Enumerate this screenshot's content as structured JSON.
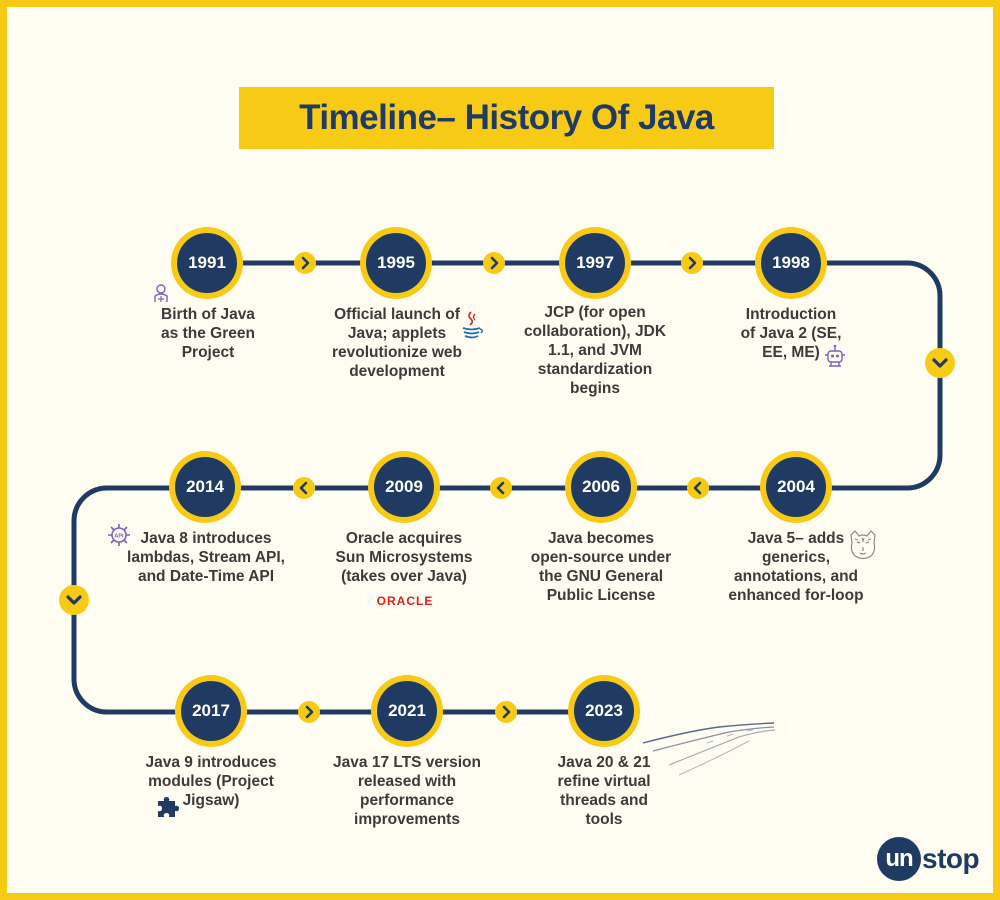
{
  "title": "Timeline– History Of Java",
  "milestones": [
    {
      "year": "1991",
      "lines": [
        "Birth of Java",
        "as the Green",
        "Project"
      ]
    },
    {
      "year": "1995",
      "lines": [
        "Official launch of",
        "Java; applets",
        "revolutionize web",
        "development"
      ]
    },
    {
      "year": "1997",
      "lines": [
        "JCP  (for open",
        "collaboration), JDK",
        "1.1, and JVM",
        "standardization",
        "begins"
      ]
    },
    {
      "year": "1998",
      "lines": [
        "Introduction",
        "of Java 2 (SE,",
        "EE, ME)"
      ]
    },
    {
      "year": "2004",
      "lines": [
        "Java 5– adds",
        "generics,",
        "annotations, and",
        "enhanced for-loop"
      ]
    },
    {
      "year": "2006",
      "lines": [
        "Java becomes",
        "open-source under",
        "the GNU General",
        "Public License"
      ]
    },
    {
      "year": "2009",
      "lines": [
        "Oracle acquires",
        "Sun Microsystems",
        "(takes over Java)"
      ]
    },
    {
      "year": "2014",
      "lines": [
        "Java 8 introduces",
        "lambdas, Stream API,",
        "and Date-Time API"
      ]
    },
    {
      "year": "2017",
      "lines": [
        "Java 9 introduces",
        "modules (Project",
        "Jigsaw)"
      ]
    },
    {
      "year": "2021",
      "lines": [
        "Java 17 LTS version",
        "released with",
        "performance",
        "improvements"
      ]
    },
    {
      "year": "2023",
      "lines": [
        "Java 20 & 21",
        "refine virtual",
        "threads and",
        "tools"
      ]
    }
  ],
  "oracle_logo": "ORACLE",
  "icons": [
    "green-project-icon",
    "java-cup-icon",
    "robot-icon",
    "tiger-icon",
    "oracle-logo",
    "api-gear-icon",
    "puzzle-piece-icon",
    "speed-lines-icon",
    "unstop-logo"
  ],
  "brand": {
    "un": "un",
    "rest": "stop"
  },
  "colors": {
    "accent": "#F7CB15",
    "navy": "#1F3A63",
    "background": "#FFFDF1",
    "text": "#3b3b3b",
    "oracle_red": "#D9231D",
    "icon_purple": "#7B5FC7"
  }
}
